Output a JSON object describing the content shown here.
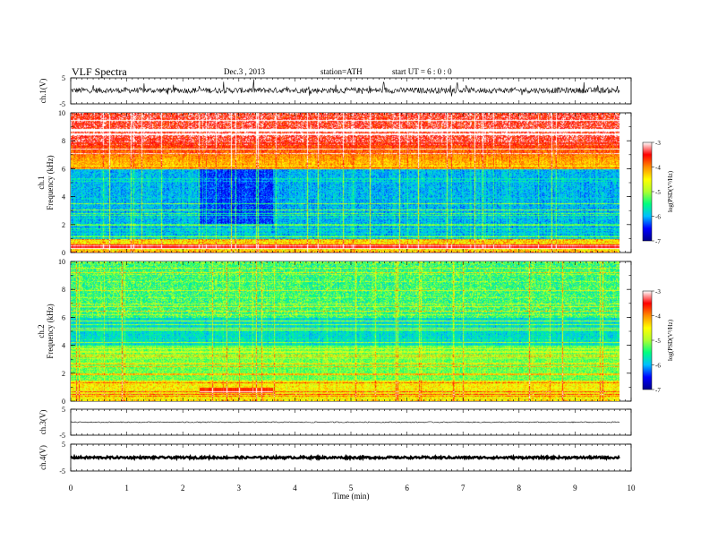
{
  "header": {
    "title": "VLF  Spectra",
    "date": "Dec.3  , 2013",
    "station": "station=ATH",
    "start": "start  UT  =   6  : 0  : 0"
  },
  "chart_data": [
    {
      "type": "line",
      "id": "ch1",
      "ylabel": "ch.1(V)",
      "ylim": [
        -5,
        5
      ],
      "yticks": [
        "5",
        "-5"
      ],
      "description_level": 0.2
    },
    {
      "type": "heatmap",
      "id": "spec1",
      "ylabel_top": "ch.1",
      "ylabel": "Frequency  (kHz)",
      "ylim": [
        0,
        10
      ],
      "yticks": [
        "0",
        "2",
        "4",
        "6",
        "8",
        "10"
      ],
      "colorbar": {
        "label": "log(PSD(V²/Hz)",
        "ticks": [
          "-3",
          "-4",
          "-5",
          "-6",
          "-7"
        ],
        "range": [
          -7,
          -3
        ]
      }
    },
    {
      "type": "heatmap",
      "id": "spec2",
      "ylabel_top": "ch.2",
      "ylabel": "Frequency  (kHz)",
      "ylim": [
        0,
        10
      ],
      "yticks": [
        "0",
        "2",
        "4",
        "6",
        "8",
        "10"
      ],
      "colorbar": {
        "label": "log(PSD(V²/Hz)",
        "ticks": [
          "-3",
          "-4",
          "-5",
          "-6",
          "-7"
        ],
        "range": [
          -7,
          -3
        ]
      }
    },
    {
      "type": "line",
      "id": "ch3",
      "ylabel": "ch.3(V)",
      "ylim": [
        -5,
        5
      ],
      "yticks": [
        "5",
        "-5"
      ],
      "level": 0
    },
    {
      "type": "line",
      "id": "ch4",
      "ylabel": "ch.4(V)",
      "ylim": [
        -5,
        5
      ],
      "yticks": [
        "5",
        "-5"
      ],
      "level": 0
    }
  ],
  "xaxis": {
    "label": "Time  (min)",
    "range": [
      0,
      10
    ],
    "data_end": 9.8,
    "ticks": [
      "0",
      "1",
      "2",
      "3",
      "4",
      "5",
      "6",
      "7",
      "8",
      "9",
      "10"
    ]
  },
  "colors": {
    "scale": [
      "#00008b",
      "#0000ff",
      "#00bfff",
      "#00ff7f",
      "#adff2f",
      "#ffff00",
      "#ff8c00",
      "#ff0000",
      "#ffffff"
    ]
  }
}
